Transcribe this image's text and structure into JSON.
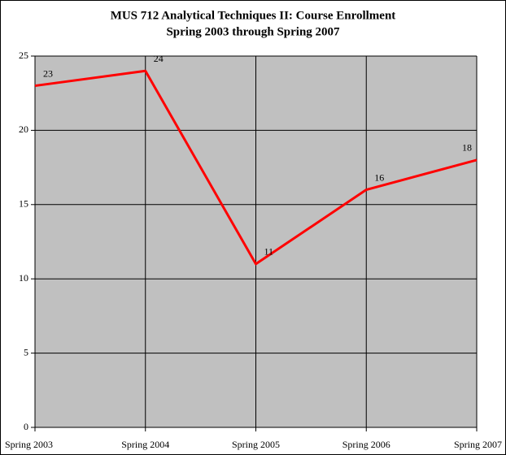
{
  "chart_data": {
    "type": "line",
    "title": "MUS 712 Analytical Techniques II: Course Enrollment",
    "subtitle": "Spring 2003 through Spring 2007",
    "categories": [
      "Spring 2003",
      "Spring 2004",
      "Spring 2005",
      "Spring 2006",
      "Spring 2007"
    ],
    "values": [
      23,
      24,
      11,
      16,
      18
    ],
    "color": "#ff0000",
    "ylim": [
      0,
      25
    ],
    "yticks": [
      0,
      5,
      10,
      15,
      20,
      25
    ],
    "grid": true
  }
}
